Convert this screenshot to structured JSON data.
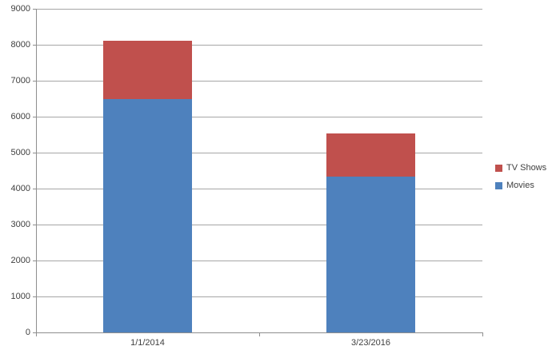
{
  "chart_data": {
    "type": "bar",
    "variant": "stacked-column",
    "title": "",
    "xlabel": "",
    "ylabel": "",
    "categories": [
      "1/1/2014",
      "3/23/2016"
    ],
    "series": [
      {
        "name": "Movies",
        "color": "#4e81bd",
        "values": [
          6494,
          4335
        ]
      },
      {
        "name": "TV Shows",
        "color": "#c0504d",
        "values": [
          1609,
          1197
        ]
      }
    ],
    "stack_totals": [
      8100,
      5530
    ],
    "ylim": [
      0,
      9000
    ],
    "ytick_step": 1000,
    "yticks": [
      0,
      1000,
      2000,
      3000,
      4000,
      5000,
      6000,
      7000,
      8000,
      9000
    ],
    "grid": true,
    "legend": {
      "position": "right",
      "entries": [
        {
          "label": "TV Shows",
          "color": "#c0504d"
        },
        {
          "label": "Movies",
          "color": "#4e81bd"
        }
      ]
    }
  },
  "style_colors": {
    "background": "#ffffff",
    "gridline": "#a6a6a6",
    "axis": "#8e8e8e",
    "text": "#404040"
  }
}
